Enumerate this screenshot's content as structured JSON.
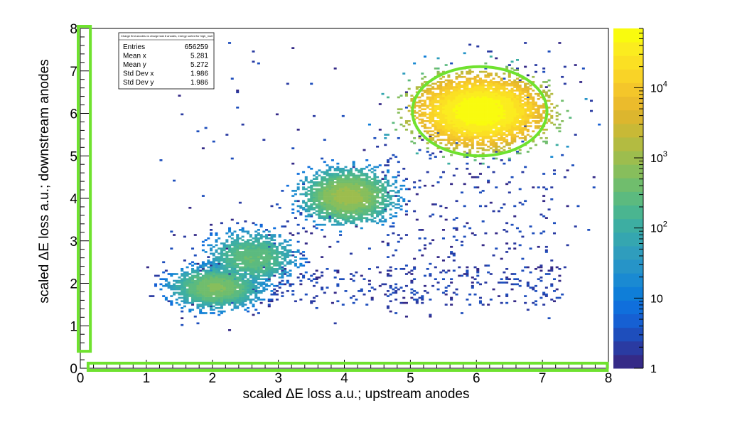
{
  "chart_data": {
    "type": "heatmap",
    "title": "",
    "xlabel": "scaled ΔE loss a.u.; upstream anodes",
    "ylabel": "scaled ΔE loss a.u.; downstream anodes",
    "xlim": [
      0,
      8
    ],
    "ylim": [
      0,
      8
    ],
    "x_ticks": [
      0,
      1,
      2,
      3,
      4,
      5,
      6,
      7,
      8
    ],
    "y_ticks": [
      0,
      1,
      2,
      3,
      4,
      5,
      6,
      7,
      8
    ],
    "x_tick_labels": [
      "0",
      "1",
      "2",
      "3",
      "4",
      "5",
      "6",
      "7",
      "8"
    ],
    "y_tick_labels": [
      "0",
      "1",
      "2",
      "3",
      "4",
      "5",
      "6",
      "7",
      "8"
    ],
    "z_scale": "log",
    "colorbar": {
      "position": "right",
      "range": [
        1,
        70000
      ],
      "ticks": [
        {
          "value": 1,
          "label": "1"
        },
        {
          "value": 10,
          "label": "10"
        },
        {
          "value": 100,
          "base": "10",
          "exp": "2"
        },
        {
          "value": 1000,
          "base": "10",
          "exp": "3"
        },
        {
          "value": 10000,
          "base": "10",
          "exp": "4"
        }
      ],
      "colors": [
        "#352a87",
        "#2a3ba2",
        "#1e4ebc",
        "#1660d3",
        "#106fdc",
        "#0f7ed8",
        "#1a8ad2",
        "#2694c8",
        "#2f9dbd",
        "#35a6b0",
        "#3daea2",
        "#4ab590",
        "#5cba7f",
        "#70bd6d",
        "#87be5c",
        "#9dbd4e",
        "#b3bb41",
        "#c8b936",
        "#dcb62e",
        "#ebbb2c",
        "#f4c62a",
        "#f9d327",
        "#fbe023",
        "#fbec1f",
        "#f9fb0e"
      ]
    },
    "clusters": [
      {
        "cx": 6.05,
        "cy": 6.05,
        "sx": 0.42,
        "sy": 0.36,
        "peak": 60000,
        "n": 5400
      },
      {
        "cx": 4.05,
        "cy": 4.05,
        "sx": 0.3,
        "sy": 0.28,
        "peak": 900,
        "n": 2600
      },
      {
        "cx": 2.6,
        "cy": 2.6,
        "sx": 0.3,
        "sy": 0.28,
        "peak": 300,
        "n": 1300
      },
      {
        "cx": 2.05,
        "cy": 1.9,
        "sx": 0.3,
        "sy": 0.22,
        "peak": 500,
        "n": 2000
      }
    ],
    "stats_box": {
      "title": "Charge first anodes vs charge last 8 anodes, energy sorted for high_mult",
      "position": "top-left",
      "rows": [
        {
          "label": "Entries",
          "value": "656259"
        },
        {
          "label": "Mean x",
          "value": "5.281"
        },
        {
          "label": "Mean y",
          "value": "5.272"
        },
        {
          "label": "Std Dev x",
          "value": "1.986"
        },
        {
          "label": "Std Dev y",
          "value": "1.986"
        }
      ]
    },
    "annotations": [
      {
        "type": "ellipse",
        "color": "#6fe22f",
        "cx": 6.05,
        "cy": 6.05,
        "rx": 1.02,
        "ry": 1.05
      },
      {
        "type": "rect",
        "color": "#6fe22f",
        "x0": 0,
        "x1": 0.12,
        "y0": 0.4,
        "y1": 8.05
      },
      {
        "type": "rect",
        "color": "#6fe22f",
        "x0": 0.15,
        "x1": 7.95,
        "y0": -0.05,
        "y1": 0.12
      }
    ]
  }
}
